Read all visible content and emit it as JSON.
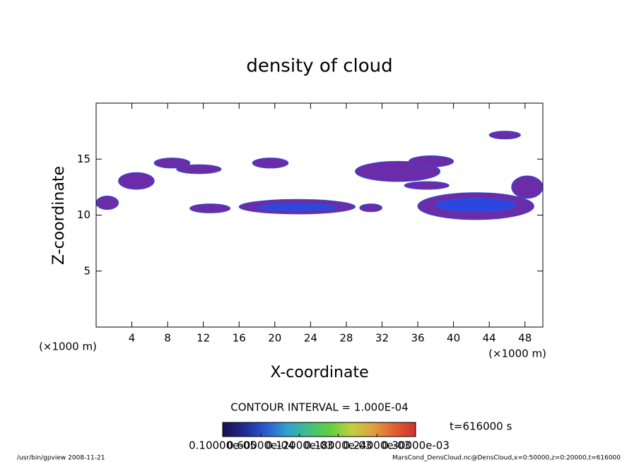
{
  "chart_data": {
    "type": "contour",
    "title": "density of cloud",
    "x_label": "X-coordinate",
    "y_label": "Z-coordinate",
    "x_unit": "(×1000 m)",
    "x_unit_right": "(×1000 m)",
    "xlim": [
      0,
      50
    ],
    "ylim": [
      0,
      20
    ],
    "xticks": [
      4,
      8,
      12,
      16,
      20,
      24,
      28,
      32,
      36,
      40,
      44,
      48
    ],
    "yticks": [
      5,
      10,
      15
    ],
    "regions": [
      {
        "x": [
          0,
          2.5
        ],
        "z": [
          10.5,
          11.7
        ],
        "level": 2e-05,
        "color": "#6a2ca8"
      },
      {
        "x": [
          2.5,
          6.5
        ],
        "z": [
          12.3,
          13.8
        ],
        "level": 2e-05,
        "color": "#6a2ca8"
      },
      {
        "x": [
          6.5,
          10.5
        ],
        "z": [
          14.2,
          15.1
        ],
        "level": 2e-05,
        "color": "#6a2ca8"
      },
      {
        "x": [
          9,
          14
        ],
        "z": [
          13.7,
          14.5
        ],
        "level": 2e-05,
        "color": "#6a2ca8"
      },
      {
        "x": [
          10.5,
          15
        ],
        "z": [
          10.2,
          11
        ],
        "level": 2e-05,
        "color": "#6a2ca8"
      },
      {
        "x": [
          16,
          29
        ],
        "z": [
          10.1,
          11.4
        ],
        "level": 2e-05,
        "color": "#6a2ca8"
      },
      {
        "x": [
          18,
          27
        ],
        "z": [
          10.4,
          11
        ],
        "level": 8e-05,
        "color": "#2a48e0"
      },
      {
        "x": [
          17.5,
          21.5
        ],
        "z": [
          14.2,
          15.1
        ],
        "level": 2e-05,
        "color": "#6a2ca8"
      },
      {
        "x": [
          29.5,
          32
        ],
        "z": [
          10.3,
          11
        ],
        "level": 2e-05,
        "color": "#6a2ca8"
      },
      {
        "x": [
          29,
          38.5
        ],
        "z": [
          13,
          14.8
        ],
        "level": 2e-05,
        "color": "#6a2ca8"
      },
      {
        "x": [
          35,
          40
        ],
        "z": [
          14.3,
          15.3
        ],
        "level": 2e-05,
        "color": "#6a2ca8"
      },
      {
        "x": [
          34.5,
          39.5
        ],
        "z": [
          12.3,
          13
        ],
        "level": 2e-05,
        "color": "#6a2ca8"
      },
      {
        "x": [
          36,
          49
        ],
        "z": [
          9.6,
          12
        ],
        "level": 2e-05,
        "color": "#6a2ca8"
      },
      {
        "x": [
          38,
          47
        ],
        "z": [
          10.3,
          11.5
        ],
        "level": 8e-05,
        "color": "#2a48e0"
      },
      {
        "x": [
          44,
          47.5
        ],
        "z": [
          16.8,
          17.5
        ],
        "level": 2e-05,
        "color": "#6a2ca8"
      },
      {
        "x": [
          46.5,
          50
        ],
        "z": [
          11.5,
          13.5
        ],
        "level": 2e-05,
        "color": "#6a2ca8"
      }
    ],
    "contour_interval": "CONTOUR INTERVAL = 1.000E-04",
    "time": "t=616000 s",
    "colorbar": {
      "clim": [
        1e-06,
        0.0003
      ],
      "colors": [
        "#1a1050",
        "#202a90",
        "#2a5ad0",
        "#30a0d0",
        "#40c080",
        "#60d040",
        "#c0d040",
        "#e0a040",
        "#e06030",
        "#d03030"
      ],
      "ticks": [
        {
          "value": 1e-06,
          "label": "0.10000e-05"
        },
        {
          "value": 6e-05,
          "label": "0.60000e-04"
        },
        {
          "value": 0.00012,
          "label": "0.12000e-03"
        },
        {
          "value": 0.00018,
          "label": "0.18000e-03"
        },
        {
          "value": 0.00024,
          "label": "0.24000e-03"
        },
        {
          "value": 0.0003,
          "label": "0.30000e-03"
        }
      ]
    },
    "footer_left": "/usr/bin/gpview   2008-11-21",
    "footer_right": "MarsCond_DensCloud.nc@DensCloud,x=0:50000,z=0:20000,t=616000"
  }
}
